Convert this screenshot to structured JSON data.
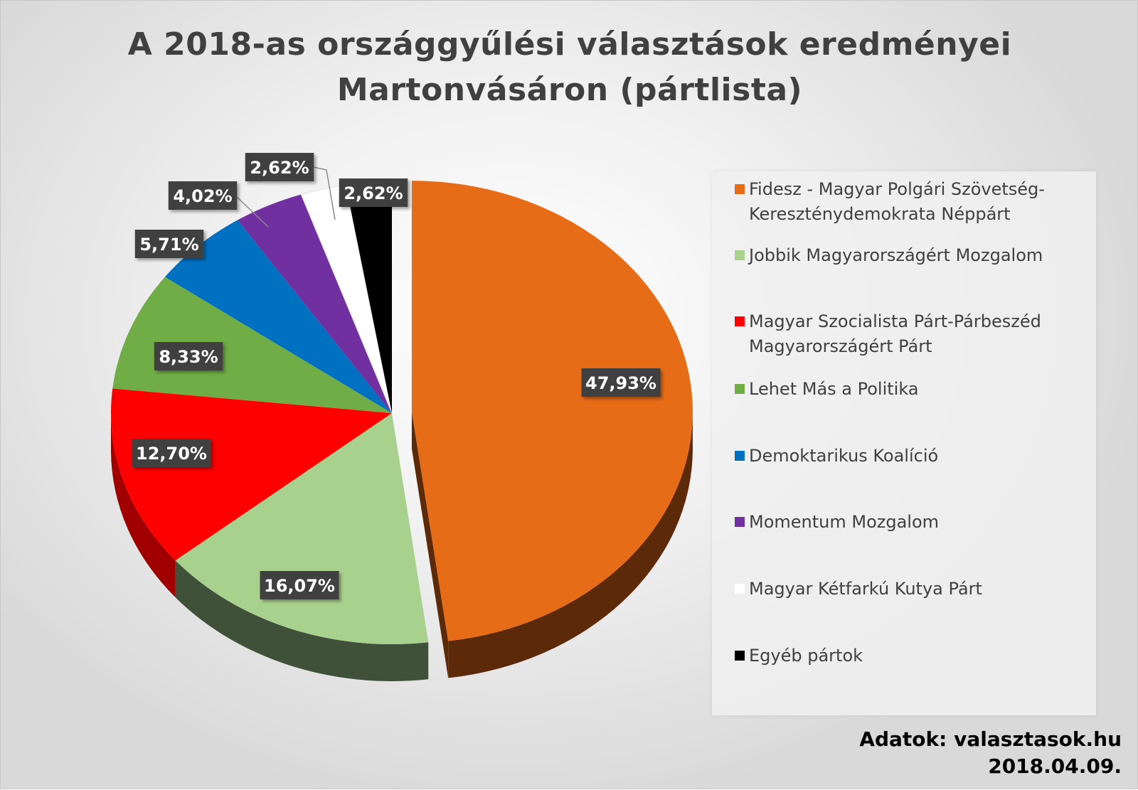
{
  "chart_data": {
    "type": "pie",
    "title_line1": "A 2018-as országgyűlési választások eredményei",
    "title_line2": "Martonvásáron  (pártlista)",
    "slices": [
      {
        "name": "Fidesz - Magyar Polgári Szövetség-Kereszténydemokrata Néppárt",
        "value": 47.93,
        "label": "47,93%",
        "color": "#E66C17",
        "side": "#5C2A08"
      },
      {
        "name": "Jobbik Magyarországért Mozgalom",
        "value": 16.07,
        "label": "16,07%",
        "color": "#A9D18E",
        "side": "#3F5239"
      },
      {
        "name": "Magyar Szocialista Párt-Párbeszéd Magyarországért Párt",
        "value": 12.7,
        "label": "12,70%",
        "color": "#FF0000",
        "side": "#A00000"
      },
      {
        "name": "Lehet Más a Politika",
        "value": 8.33,
        "label": "8,33%",
        "color": "#70AD47",
        "side": "#3E6127"
      },
      {
        "name": "Demoktarikus Koalíció",
        "value": 5.71,
        "label": "5,71%",
        "color": "#0070C0",
        "side": "#003F6E"
      },
      {
        "name": "Momentum Mozgalom",
        "value": 4.02,
        "label": "4,02%",
        "color": "#7030A0",
        "side": "#3C1A57"
      },
      {
        "name": "Magyar Kétfarkú Kutya Párt",
        "value": 2.62,
        "label": "2,62%",
        "color": "#FFFFFF",
        "side": "#BFBFBF"
      },
      {
        "name": "Egyéb pártok",
        "value": 2.62,
        "label": "2,62%",
        "color": "#000000",
        "side": "#000000"
      }
    ]
  },
  "legend": {
    "items": [
      {
        "text1": "Fidesz - Magyar Polgári Szövetség-",
        "text2": "Kereszténydemokrata Néppárt",
        "color": "#E66C17"
      },
      {
        "text1": "Jobbik Magyarországért Mozgalom",
        "text2": "",
        "color": "#A9D18E"
      },
      {
        "text1": "Magyar Szocialista Párt-Párbeszéd",
        "text2": "Magyarországért Párt",
        "color": "#FF0000"
      },
      {
        "text1": "Lehet Más a Politika",
        "text2": "",
        "color": "#70AD47"
      },
      {
        "text1": "Demoktarikus Koalíció",
        "text2": "",
        "color": "#0070C0"
      },
      {
        "text1": "Momentum Mozgalom",
        "text2": "",
        "color": "#7030A0"
      },
      {
        "text1": "Magyar Kétfarkú Kutya Párt",
        "text2": "",
        "color": "#FFFFFF"
      },
      {
        "text1": "Egyéb pártok",
        "text2": "",
        "color": "#000000"
      }
    ]
  },
  "credit": {
    "source": "Adatok: valasztasok.hu",
    "date": "2018.04.09."
  }
}
